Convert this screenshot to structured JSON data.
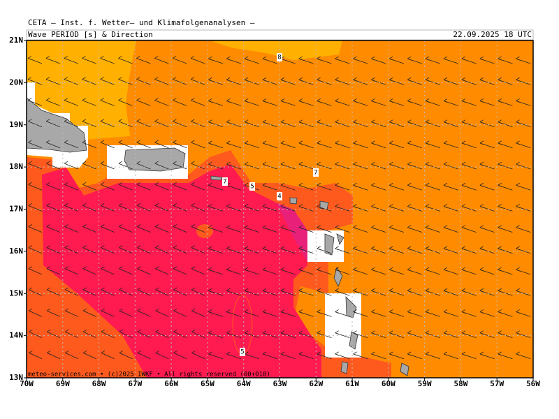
{
  "header": {
    "title": "CETA — Inst. f. Wetter— und Klimafolgenanalysen —",
    "subtitle": "Wave PERIOD [s] & Direction",
    "timestamp": "22.09.2025 18 UTC"
  },
  "map": {
    "lat_labels": [
      "21N",
      "20N",
      "19N",
      "18N",
      "17N",
      "16N",
      "15N",
      "14N",
      "13N"
    ],
    "lon_labels": [
      "70W",
      "69W",
      "68W",
      "67W",
      "66W",
      "65W",
      "64W",
      "63W",
      "62W",
      "61W",
      "60W",
      "59W",
      "58W",
      "57W",
      "56W"
    ],
    "contour_labels": [
      "8",
      "7",
      "7",
      "5",
      "4",
      "5"
    ],
    "footer": "meteo-services.com • (c)2025 IWKF • All rights reserved (00+018)"
  }
}
